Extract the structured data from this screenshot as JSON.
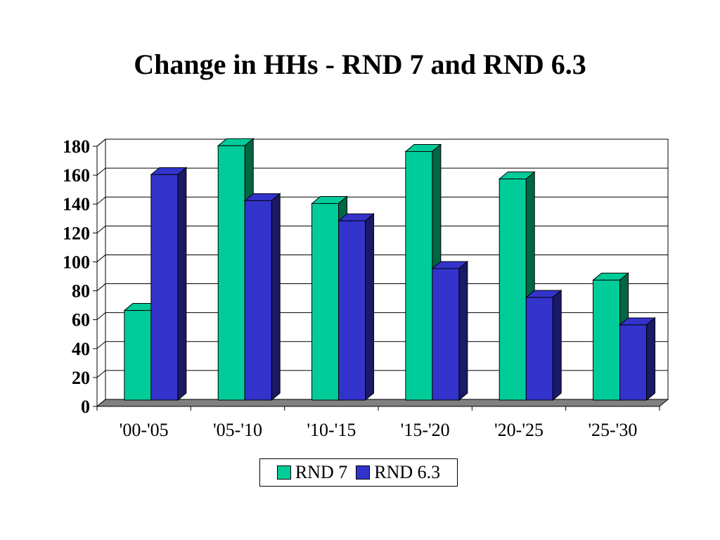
{
  "chart_data": {
    "type": "bar",
    "title": "Change in HHs - RND 7 and RND 6.3",
    "xlabel": "",
    "ylabel": "",
    "categories": [
      "'00-'05",
      "'05-'10",
      "'10-'15",
      "'15-'20",
      "'20-'25",
      "'25-'30"
    ],
    "series": [
      {
        "name": "RND 7",
        "values": [
          62,
          176,
          136,
          172,
          153,
          83
        ],
        "color": "#00cc99",
        "side_color": "#006644"
      },
      {
        "name": "RND 6.3",
        "values": [
          156,
          138,
          124,
          91,
          71,
          52
        ],
        "color": "#3333cc",
        "side_color": "#1a1a66"
      }
    ],
    "ylim": [
      0,
      180
    ],
    "yticks": [
      0,
      20,
      40,
      60,
      80,
      100,
      120,
      140,
      160,
      180
    ],
    "grid": true,
    "legend_position": "bottom",
    "style": "3d-clustered-column"
  }
}
